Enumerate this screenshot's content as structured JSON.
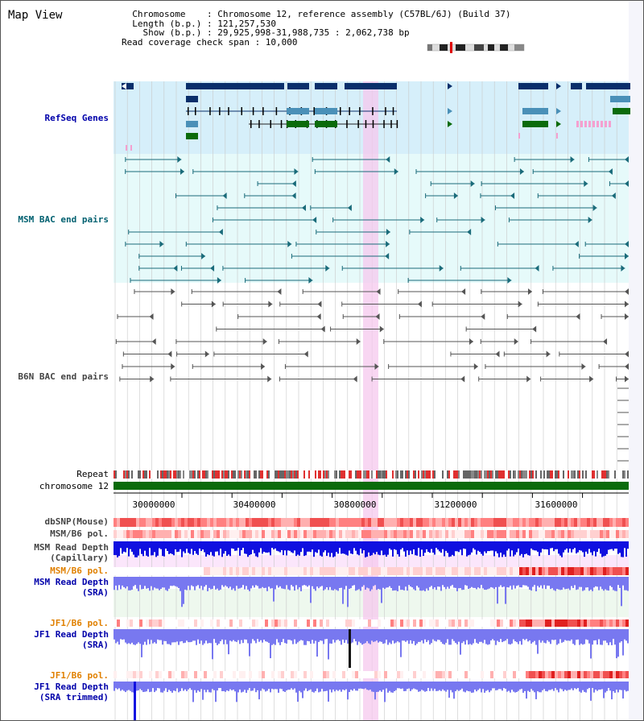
{
  "title": "Map View",
  "header": {
    "chromosome": "  Chromosome    : Chromosome 12, reference assembly (C57BL/6J) (Build 37)",
    "length": "  Length (b.p.) : 121,257,530",
    "show": "    Show (b.p.) : 29,925,998-31,988,735 : 2,062,738 bp",
    "read_coverage": "Read coverage check span : 10,000"
  },
  "tracks": {
    "refseq": "RefSeq Genes",
    "msm_bac": "MSM BAC end pairs",
    "b6n_bac": "B6N BAC end pairs",
    "repeat": "Repeat",
    "chromosome": "chromosome 12",
    "dbsnp": "dbSNP(Mouse)",
    "msm_b6_pol": "MSM/B6 pol.",
    "msm_read_depth_cap_1": "MSM Read Depth",
    "msm_read_depth_cap_2": "(Capillary)",
    "msm_b6_pol2": "MSM/B6 pol.",
    "msm_read_depth_sra_1": "MSM Read Depth",
    "msm_read_depth_sra_2": "(SRA)",
    "jf1_b6_pol": "JF1/B6 pol.",
    "jf1_read_depth_sra_1": "JF1 Read Depth",
    "jf1_read_depth_sra_2": "(SRA)",
    "jf1_b6_pol2": "JF1/B6 pol.",
    "jf1_read_depth_trim_1": "JF1 Read Depth",
    "jf1_read_depth_trim_2": "(SRA trimmed)"
  },
  "axis": {
    "ticks": [
      "30000000",
      "30400000",
      "30800000",
      "31200000",
      "31600000"
    ]
  },
  "colors": {
    "refseq_bg": "#d6effa",
    "bac_bg": "#e6fafa",
    "highlight": "#f5c8ee",
    "gene_dark": "#0a2f6b",
    "gene_mid": "#4a90b8",
    "gene_green": "#0b6b0b",
    "bac_line": "#1a6b7a",
    "b6n_line": "#555555",
    "chrom_bar": "#0b6b0b",
    "depth_blue": "#1010e0",
    "depth_light": "#7878f0",
    "label_blue": "#0000aa",
    "label_orange": "#e08000",
    "label_teal": "#006070"
  }
}
